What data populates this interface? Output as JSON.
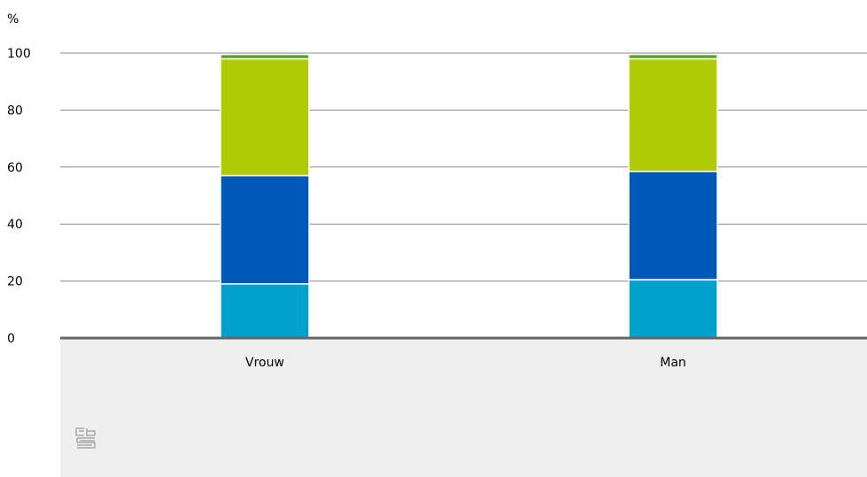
{
  "chart_data": {
    "type": "bar",
    "stacked": true,
    "unit": "%",
    "categories": [
      "Vrouw",
      "Man"
    ],
    "series": [
      {
        "values": [
          19,
          20.5
        ],
        "color": "#00a1cd"
      },
      {
        "values": [
          38,
          38
        ],
        "color": "#0058b8"
      },
      {
        "values": [
          41,
          39.5
        ],
        "color": "#afcb05"
      },
      {
        "values": [
          1.5,
          1.5
        ],
        "color": "#53a31d"
      }
    ],
    "yticks": [
      0,
      20,
      40,
      60,
      80,
      100
    ],
    "ylim": [
      0,
      100
    ],
    "grid": true,
    "legend": "none"
  },
  "branding": {
    "logo_icon": "cbs-logo-icon",
    "footer_background": "#efefef"
  }
}
